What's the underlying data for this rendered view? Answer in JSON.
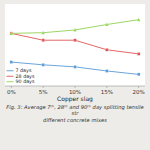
{
  "chart_data": {
    "type": "line",
    "x": [
      0,
      5,
      10,
      15,
      20
    ],
    "series": [
      {
        "name": "7 days",
        "color": "#5b9bd5",
        "marker": "square",
        "values": [
          2.1,
          2.06,
          2.03,
          1.97,
          1.92
        ]
      },
      {
        "name": "28 days",
        "color": "#e05555",
        "marker": "square",
        "values": [
          2.52,
          2.42,
          2.42,
          2.28,
          2.22
        ]
      },
      {
        "name": "90 days",
        "color": "#92d050",
        "marker": "triangle",
        "values": [
          2.52,
          2.53,
          2.57,
          2.65,
          2.72
        ]
      }
    ],
    "x_label": "Copper slag",
    "annotations": [
      "Fig. 3: Average 7ᵗʰ, 28ᵗʰ and 90ᵗʰ day splitting tensile str",
      "different concrete mixes"
    ],
    "xlim": [
      -1,
      21
    ],
    "xticks": [
      {
        "value": 0,
        "label": "0%"
      },
      {
        "value": 5,
        "label": "5%"
      },
      {
        "value": 10,
        "label": "10%"
      },
      {
        "value": 15,
        "label": "15%"
      },
      {
        "value": 20,
        "label": "20%"
      }
    ],
    "ylim": [
      1.75,
      2.95
    ],
    "tick_labels": "x",
    "grid": false,
    "legend": "lower left"
  }
}
